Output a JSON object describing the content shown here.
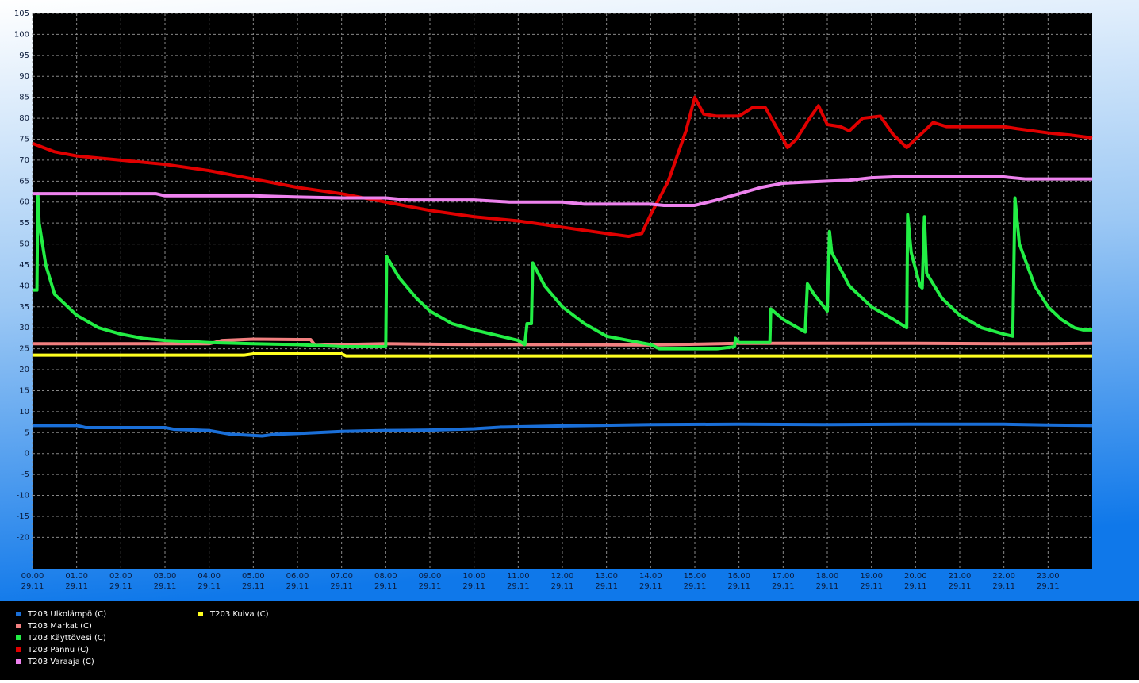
{
  "chart_data": {
    "type": "line",
    "xlim": [
      0,
      24
    ],
    "ylim": [
      -27.5,
      105
    ],
    "yticks": [
      -20,
      -15,
      -10,
      -5,
      0,
      5,
      10,
      15,
      20,
      25,
      30,
      35,
      40,
      45,
      50,
      55,
      60,
      65,
      70,
      75,
      80,
      85,
      90,
      95,
      100,
      105
    ],
    "xticks": [
      {
        "value": 0,
        "label": "00.00"
      },
      {
        "value": 1,
        "label": "01.00"
      },
      {
        "value": 2,
        "label": "02.00"
      },
      {
        "value": 3,
        "label": "03.00"
      },
      {
        "value": 4,
        "label": "04.00"
      },
      {
        "value": 5,
        "label": "05.00"
      },
      {
        "value": 6,
        "label": "06.00"
      },
      {
        "value": 7,
        "label": "07.00"
      },
      {
        "value": 8,
        "label": "08.00"
      },
      {
        "value": 9,
        "label": "09.00"
      },
      {
        "value": 10,
        "label": "10.00"
      },
      {
        "value": 11,
        "label": "11.00"
      },
      {
        "value": 12,
        "label": "12.00"
      },
      {
        "value": 13,
        "label": "13.00"
      },
      {
        "value": 14,
        "label": "14.00"
      },
      {
        "value": 15,
        "label": "15.00"
      },
      {
        "value": 16,
        "label": "16.00"
      },
      {
        "value": 17,
        "label": "17.00"
      },
      {
        "value": 18,
        "label": "18.00"
      },
      {
        "value": 19,
        "label": "19.00"
      },
      {
        "value": 20,
        "label": "20.00"
      },
      {
        "value": 21,
        "label": "21.00"
      },
      {
        "value": 22,
        "label": "22.00"
      },
      {
        "value": 23,
        "label": "23.00"
      }
    ],
    "xtick_dates": [
      "29.11",
      "29.11",
      "29.11",
      "29.11",
      "29.11",
      "29.11",
      "29.11",
      "29.11",
      "29.11",
      "29.11",
      "29.11",
      "29.11",
      "29.11",
      "29.11",
      "29.11",
      "29.11",
      "29.11",
      "29.11",
      "29.11",
      "29.11",
      "29.11",
      "29.11",
      "29.11",
      "29.11"
    ],
    "grid": true,
    "series": [
      {
        "name": "T203 Ulkolämpö (C)",
        "color": "#1a6fd8",
        "x": [
          0,
          1,
          1.2,
          3,
          3.2,
          4,
          4.5,
          5.2,
          5.5,
          6,
          7,
          8,
          9,
          10,
          10.6,
          12,
          14,
          16,
          18,
          20,
          22,
          23,
          24
        ],
        "values": [
          6.7,
          6.7,
          6.2,
          6.2,
          5.8,
          5.5,
          4.6,
          4.2,
          4.6,
          4.8,
          5.3,
          5.5,
          5.6,
          5.9,
          6.3,
          6.6,
          6.9,
          7.0,
          6.9,
          7.0,
          7.0,
          6.8,
          6.7
        ]
      },
      {
        "name": "T203 Markat (C)",
        "color": "#f28080",
        "x": [
          0,
          4,
          4.3,
          5,
          6,
          6.3,
          6.4,
          7,
          8,
          10,
          12,
          14,
          16,
          18,
          20,
          22,
          23,
          24
        ],
        "values": [
          26.2,
          26.2,
          27,
          27.3,
          27.2,
          27.2,
          25.8,
          26,
          26.2,
          26,
          26,
          25.9,
          26.3,
          26.3,
          26.3,
          26.2,
          26.2,
          26.3
        ]
      },
      {
        "name": "T203 Käyttövesi (C)",
        "color": "#22ee44",
        "x": [
          0,
          0.1,
          0.12,
          0.15,
          0.3,
          0.5,
          1,
          1.5,
          2,
          2.5,
          3,
          4,
          5,
          6,
          7,
          8,
          8.02,
          8.3,
          8.7,
          9,
          9.5,
          10,
          11,
          11.15,
          11.2,
          11.3,
          11.33,
          11.6,
          12,
          12.5,
          13,
          14,
          14.2,
          15,
          15.5,
          15.9,
          15.92,
          16,
          16.7,
          16.72,
          17,
          17.5,
          17.55,
          17.7,
          18,
          18.05,
          18.1,
          18.5,
          19,
          19.5,
          19.8,
          19.82,
          19.9,
          20.1,
          20.15,
          20.2,
          20.25,
          20.6,
          21,
          21.5,
          22,
          22.2,
          22.25,
          22.35,
          22.7,
          23,
          23.3,
          23.6,
          23.8,
          24
        ],
        "values": [
          39,
          39,
          62,
          55,
          45,
          38,
          33,
          30,
          28.5,
          27.5,
          27,
          26.5,
          26.2,
          26,
          25.5,
          25.5,
          47,
          42,
          37,
          34,
          31,
          29.5,
          27,
          26,
          31,
          31,
          45.5,
          40,
          35,
          31,
          28,
          26,
          25,
          25,
          25,
          25.5,
          27.5,
          26.5,
          26.5,
          34.5,
          32,
          29,
          40.5,
          38,
          34,
          53,
          48,
          40,
          35,
          32,
          30,
          57,
          48,
          40,
          39.5,
          56.5,
          43,
          37,
          33,
          30,
          28.5,
          28,
          61,
          50,
          40,
          35,
          32,
          30,
          29.5,
          29.5
        ]
      },
      {
        "name": "T203 Pannu (C)",
        "color": "#e00000",
        "x": [
          0,
          0.5,
          1,
          2,
          3,
          4,
          5,
          6,
          7,
          8,
          9,
          10,
          11,
          12,
          13,
          13.5,
          13.8,
          14,
          14.4,
          14.8,
          15,
          15.2,
          15.5,
          16,
          16.3,
          16.6,
          17,
          17.1,
          17.3,
          17.6,
          17.8,
          18,
          18.3,
          18.5,
          18.8,
          19.2,
          19.5,
          19.8,
          20.2,
          20.4,
          20.7,
          21,
          22,
          22.3,
          23,
          23.5,
          24
        ],
        "values": [
          74,
          72,
          71,
          70,
          69,
          67.5,
          65.5,
          63.5,
          62,
          60,
          58,
          56.5,
          55.5,
          54,
          52.5,
          51.8,
          52.5,
          57,
          65,
          77,
          85,
          81,
          80.5,
          80.5,
          82.5,
          82.5,
          75,
          73,
          75,
          80,
          83,
          78.5,
          78,
          77,
          80,
          80.5,
          76,
          73,
          77,
          79,
          78,
          78,
          78,
          77.5,
          76.5,
          76,
          75.3
        ]
      },
      {
        "name": "T203 Varaaja (C)",
        "color": "#ee82ee",
        "x": [
          0,
          1,
          2,
          2.8,
          3,
          4,
          5,
          6,
          7,
          8,
          8.5,
          10,
          10.8,
          12,
          12.5,
          14,
          14.3,
          15,
          15.5,
          16,
          16.5,
          17,
          18,
          18.5,
          19,
          19.5,
          20,
          22,
          22.5,
          24
        ],
        "values": [
          62,
          62,
          62,
          62,
          61.5,
          61.5,
          61.5,
          61.2,
          61,
          61,
          60.5,
          60.5,
          60,
          60,
          59.5,
          59.5,
          59.2,
          59.2,
          60.5,
          62,
          63.5,
          64.5,
          65,
          65.2,
          65.8,
          66,
          66,
          66,
          65.5,
          65.5
        ]
      },
      {
        "name": "T203 Kuiva (C)",
        "color": "#ffff20",
        "x": [
          0,
          4.8,
          5,
          7,
          7.1,
          24
        ],
        "values": [
          23.5,
          23.5,
          23.8,
          23.8,
          23.3,
          23.3
        ]
      }
    ]
  }
}
